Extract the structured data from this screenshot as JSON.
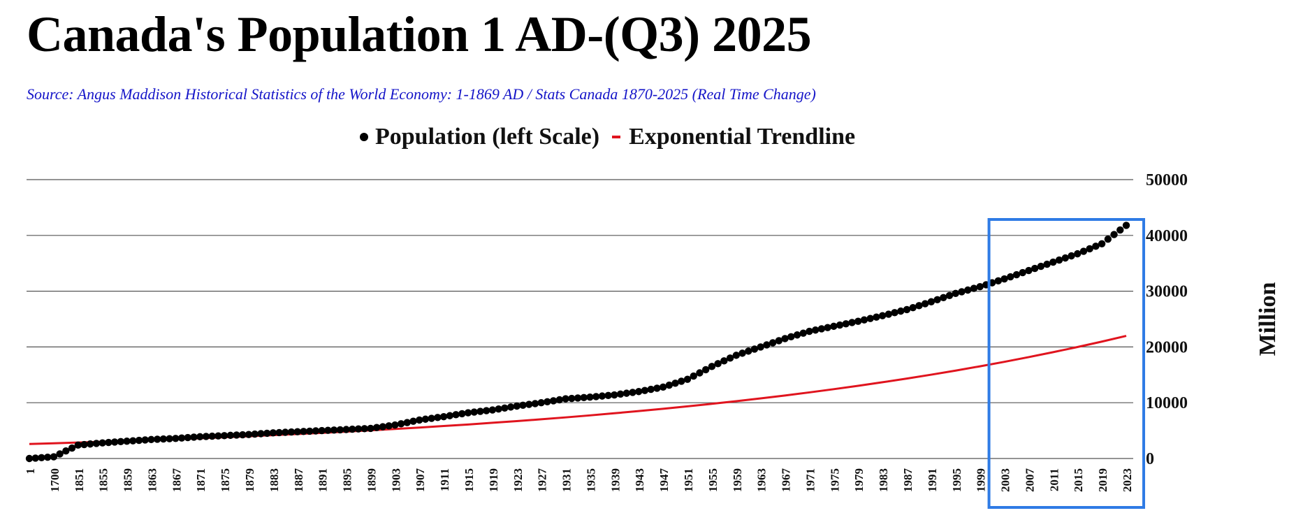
{
  "chart_data": {
    "type": "line",
    "title": "Canada's Population 1 AD-(Q3) 2025",
    "subtitle": "Source: Angus Maddison Historical Statistics of the World Economy:  1-1869 AD / Stats Canada 1870-2025 (Real Time Change)",
    "ylabel": "Million",
    "ylim": [
      0,
      50000
    ],
    "y_ticks": [
      "0",
      "10000",
      "20000",
      "30000",
      "40000",
      "50000"
    ],
    "x_tick_labels": [
      "1",
      "1700",
      "1851",
      "1855",
      "1859",
      "1863",
      "1867",
      "1871",
      "1875",
      "1879",
      "1883",
      "1887",
      "1891",
      "1895",
      "1899",
      "1903",
      "1907",
      "1911",
      "1915",
      "1919",
      "1923",
      "1927",
      "1931",
      "1935",
      "1939",
      "1943",
      "1947",
      "1951",
      "1955",
      "1959",
      "1963",
      "1967",
      "1971",
      "1975",
      "1979",
      "1983",
      "1987",
      "1991",
      "1995",
      "1999",
      "2003",
      "2007",
      "2011",
      "2015",
      "2019",
      "2023"
    ],
    "legend": {
      "position": "top-center",
      "population_label": "Population (left Scale)",
      "trend_label": "Exponential Trendline"
    },
    "series": [
      {
        "name": "Population (left Scale)",
        "style": "markers",
        "color": "#000000",
        "x": [
          "1",
          "1700",
          "1851",
          "1855",
          "1859",
          "1863",
          "1867",
          "1871",
          "1875",
          "1879",
          "1883",
          "1887",
          "1891",
          "1895",
          "1899",
          "1903",
          "1907",
          "1911",
          "1915",
          "1919",
          "1923",
          "1927",
          "1931",
          "1935",
          "1939",
          "1943",
          "1947",
          "1951",
          "1955",
          "1959",
          "1963",
          "1967",
          "1971",
          "1975",
          "1979",
          "1983",
          "1987",
          "1991",
          "1995",
          "1999",
          "2003",
          "2007",
          "2011",
          "2015",
          "2019",
          "2023"
        ],
        "values": [
          0,
          300,
          2400,
          2800,
          3100,
          3400,
          3600,
          3900,
          4100,
          4300,
          4600,
          4800,
          5000,
          5200,
          5400,
          6000,
          6900,
          7500,
          8200,
          8700,
          9400,
          10000,
          10700,
          11000,
          11400,
          12000,
          12800,
          14200,
          16500,
          18500,
          20000,
          21500,
          22800,
          23700,
          24600,
          25600,
          26700,
          28100,
          29600,
          30800,
          32200,
          33700,
          35200,
          36700,
          38500,
          41800
        ]
      },
      {
        "name": "Exponential Trendline",
        "style": "line",
        "color": "#e0141e",
        "x": [
          "1",
          "1700",
          "1851",
          "1855",
          "1859",
          "1863",
          "1867",
          "1871",
          "1875",
          "1879",
          "1883",
          "1887",
          "1891",
          "1895",
          "1899",
          "1903",
          "1907",
          "1911",
          "1915",
          "1919",
          "1923",
          "1927",
          "1931",
          "1935",
          "1939",
          "1943",
          "1947",
          "1951",
          "1955",
          "1959",
          "1963",
          "1967",
          "1971",
          "1975",
          "1979",
          "1983",
          "1987",
          "1991",
          "1995",
          "1999",
          "2003",
          "2007",
          "2011",
          "2015",
          "2019",
          "2023"
        ],
        "values": [
          2600,
          2730,
          2860,
          3000,
          3150,
          3300,
          3460,
          3620,
          3800,
          3980,
          4180,
          4380,
          4590,
          4810,
          5050,
          5290,
          5550,
          5820,
          6100,
          6400,
          6710,
          7030,
          7370,
          7730,
          8110,
          8500,
          8910,
          9350,
          9800,
          10280,
          10780,
          11300,
          11850,
          12430,
          13030,
          13670,
          14330,
          15030,
          15760,
          16530,
          17330,
          18180,
          19060,
          19990,
          20960,
          21980
        ]
      }
    ],
    "highlight_box": {
      "from_x": "2003",
      "to_x": "2023",
      "color": "#2f7be5"
    }
  }
}
